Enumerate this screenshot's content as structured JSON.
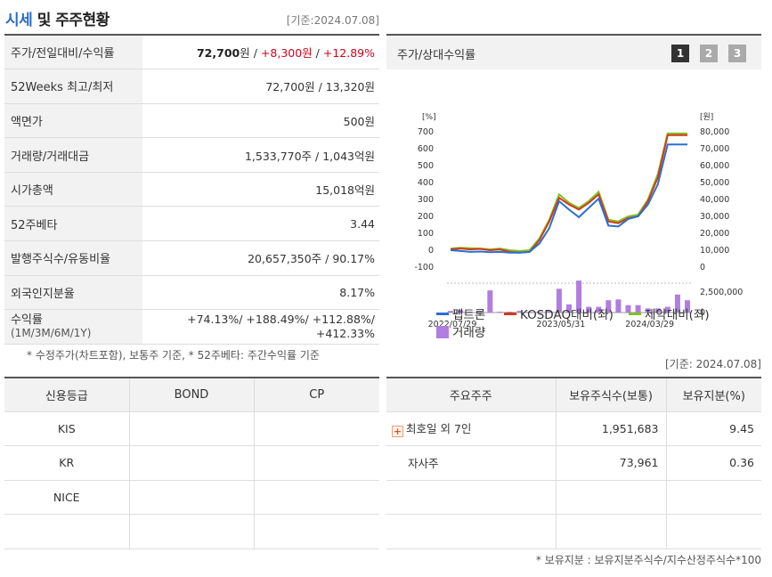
{
  "header": {
    "title_highlight": "시세",
    "title_rest": " 및 주주현황",
    "date_label": "[기준:2024.07.08]"
  },
  "price_table": {
    "rows": [
      {
        "label": "주가/전일대비/수익률",
        "price": "72,700",
        "unit": "원",
        "sep": " / ",
        "change": "+8,300원",
        "rate": "+12.89%"
      },
      {
        "label": "52Weeks 최고/최저",
        "value": "72,700원 / 13,320원"
      },
      {
        "label": "액면가",
        "value": "500원"
      },
      {
        "label": "거래량/거래대금",
        "value": "1,533,770주 / 1,043억원"
      },
      {
        "label": "시가총액",
        "value": "15,018억원"
      },
      {
        "label": "52주베타",
        "value": "3.44"
      },
      {
        "label": "발행주식수/유동비율",
        "value": "20,657,350주 / 90.17%"
      },
      {
        "label": "외국인지분율",
        "value": "8.17%"
      },
      {
        "label": "수익률",
        "sublabel": "(1M/3M/6M/1Y)",
        "value_line1": "+74.13%/ +188.49%/ +112.88%/",
        "value_line2": "+412.33%"
      }
    ],
    "note": "* 수정주가(차트포함), 보통주 기준, * 52주베타: 주간수익률 기준"
  },
  "chart_panel": {
    "title": "주가/상대수익률",
    "pages": [
      "1",
      "2",
      "3"
    ],
    "active_page": "1",
    "left_unit": "[%]",
    "right_unit": "[원]",
    "left_ticks": [
      "700",
      "600",
      "500",
      "400",
      "300",
      "200",
      "100",
      "0",
      "-100"
    ],
    "right_ticks": [
      "80,000",
      "70,000",
      "60,000",
      "50,000",
      "40,000",
      "30,000",
      "20,000",
      "10,000",
      "0"
    ],
    "volume_tick": "2,500,000",
    "volume_zero": "0",
    "x_ticks": [
      "2022/07/29",
      "2023/05/31",
      "2024/03/29"
    ],
    "legend": {
      "series1": "펩트론",
      "series2": "KOSDAQ대비(좌)",
      "series3": "제약대비(좌)",
      "series4": "거래량"
    },
    "colors": {
      "s1": "#2a6fd6",
      "s2": "#d23a1a",
      "s3": "#7ec21e",
      "vol": "#b07ee0"
    }
  },
  "chart_data": {
    "type": "line",
    "x": [
      "2022/07",
      "2022/08",
      "2022/09",
      "2022/10",
      "2022/11",
      "2022/12",
      "2023/01",
      "2023/02",
      "2023/03",
      "2023/04",
      "2023/05",
      "2023/06",
      "2023/07",
      "2023/08",
      "2023/09",
      "2023/10",
      "2023/11",
      "2023/12",
      "2024/01",
      "2024/02",
      "2024/03",
      "2024/04",
      "2024/05",
      "2024/06",
      "2024/07"
    ],
    "series": [
      {
        "name": "펩트론",
        "values": [
          0,
          -5,
          -10,
          -8,
          -12,
          -10,
          -15,
          -15,
          -10,
          40,
          130,
          290,
          240,
          195,
          250,
          305,
          145,
          140,
          185,
          200,
          270,
          390,
          625,
          625,
          625
        ]
      },
      {
        "name": "KOSDAQ대비(좌)",
        "values": [
          5,
          10,
          5,
          8,
          0,
          5,
          -10,
          -15,
          -10,
          60,
          170,
          310,
          270,
          240,
          280,
          330,
          170,
          160,
          190,
          200,
          290,
          430,
          680,
          680,
          680
        ]
      },
      {
        "name": "제약대비(좌)",
        "values": [
          10,
          15,
          12,
          10,
          5,
          10,
          0,
          -5,
          0,
          70,
          180,
          330,
          280,
          250,
          290,
          345,
          180,
          170,
          200,
          210,
          300,
          450,
          690,
          690,
          690
        ]
      }
    ],
    "volume": [
      200000,
      300000,
      100000,
      100000,
      2700000,
      100000,
      100000,
      200000,
      100000,
      100000,
      200000,
      2900000,
      1000000,
      3900000,
      700000,
      700000,
      1500000,
      1600000,
      900000,
      900000,
      500000,
      500000,
      700000,
      2200000,
      1500000
    ],
    "ylim_left": [
      -100,
      700
    ],
    "ylim_right": [
      0,
      80000
    ],
    "ylim_volume": [
      0,
      2500000
    ]
  },
  "credit_table": {
    "headers": [
      "신용등급",
      "BOND",
      "CP"
    ],
    "rows": [
      [
        "KIS",
        "",
        ""
      ],
      [
        "KR",
        "",
        ""
      ],
      [
        "NICE",
        "",
        ""
      ],
      [
        "",
        "",
        ""
      ]
    ]
  },
  "shareholder_table": {
    "date_label": "[기준: 2024.07.08]",
    "headers": [
      "주요주주",
      "보유주식수(보통)",
      "보유지분(%)"
    ],
    "rows": [
      {
        "name": "최호일 외 7인",
        "expand": "+",
        "shares": "1,951,683",
        "ratio": "9.45"
      },
      {
        "name": "자사주",
        "shares": "73,961",
        "ratio": "0.36"
      },
      {
        "name": "",
        "shares": "",
        "ratio": ""
      },
      {
        "name": "",
        "shares": "",
        "ratio": ""
      }
    ],
    "note": "* 보유지분 : 보유지분주식수/지수산정주식수*100"
  }
}
